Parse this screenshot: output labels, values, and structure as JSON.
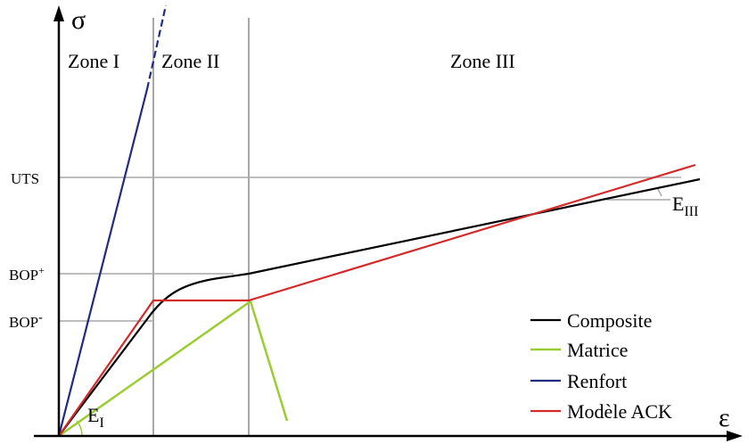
{
  "axes": {
    "y_symbol": "σ",
    "x_symbol": "ε"
  },
  "zones": [
    {
      "label": "Zone I"
    },
    {
      "label": "Zone II"
    },
    {
      "label": "Zone III"
    }
  ],
  "stress_levels": {
    "uts": "UTS",
    "bop_plus": {
      "base": "BOP",
      "sup": "+"
    },
    "bop_minus": {
      "base": "BOP",
      "sup": "-"
    }
  },
  "moduli": {
    "e1": {
      "base": "E",
      "sub": "I"
    },
    "e3": {
      "base": "E",
      "sub": "III"
    }
  },
  "legend": [
    {
      "label": "Composite",
      "color": "#000000"
    },
    {
      "label": "Matrice",
      "color": "#9acd32"
    },
    {
      "label": "Renfort",
      "color": "#1f2a80"
    },
    {
      "label": "Modèle ACK",
      "color": "#d42a2a"
    }
  ]
}
